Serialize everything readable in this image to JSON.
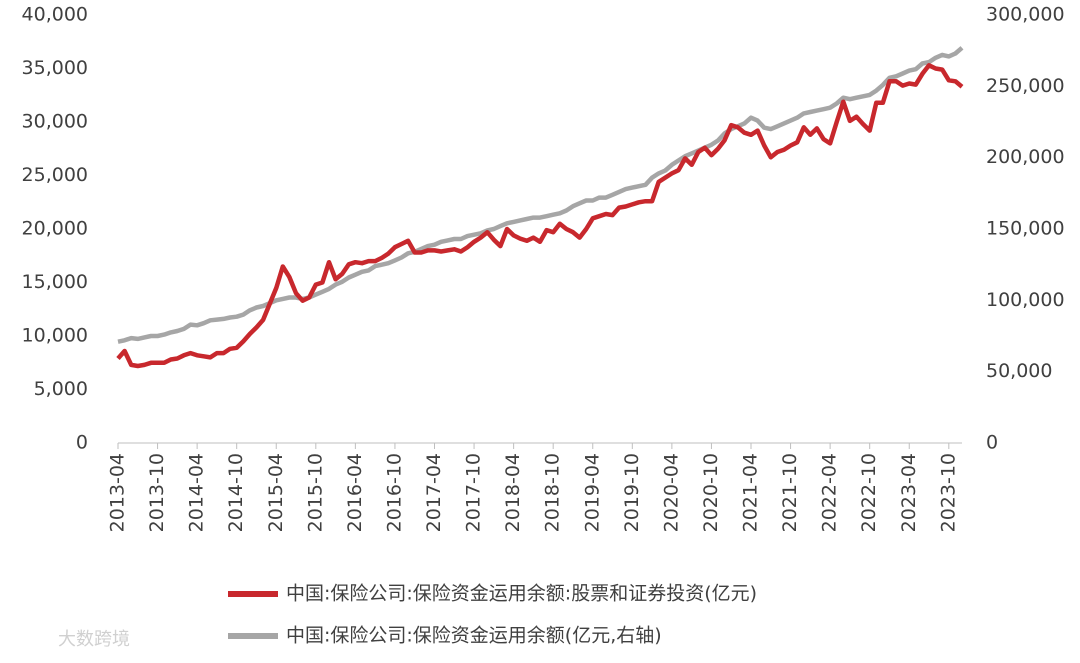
{
  "chart_data": {
    "type": "line",
    "categories": [
      "2013-04",
      null,
      null,
      null,
      null,
      null,
      "2013-10",
      null,
      null,
      null,
      null,
      null,
      "2014-04",
      null,
      null,
      null,
      null,
      null,
      "2014-10",
      null,
      null,
      null,
      null,
      null,
      "2015-04",
      null,
      null,
      null,
      null,
      null,
      "2015-10",
      null,
      null,
      null,
      null,
      null,
      "2016-04",
      null,
      null,
      null,
      null,
      null,
      "2016-10",
      null,
      null,
      null,
      null,
      null,
      "2017-04",
      null,
      null,
      null,
      null,
      null,
      "2017-10",
      null,
      null,
      null,
      null,
      null,
      "2018-04",
      null,
      null,
      null,
      null,
      null,
      "2018-10",
      null,
      null,
      null,
      null,
      null,
      "2019-04",
      null,
      null,
      null,
      null,
      null,
      "2019-10",
      null,
      null,
      null,
      null,
      null,
      "2020-04",
      null,
      null,
      null,
      null,
      null,
      "2020-10",
      null,
      null,
      null,
      null,
      null,
      "2021-04",
      null,
      null,
      null,
      null,
      null,
      "2021-10",
      null,
      null,
      null,
      null,
      null,
      "2022-04",
      null,
      null,
      null,
      null,
      null,
      "2022-10",
      null,
      null,
      null,
      null,
      null,
      "2023-04",
      null,
      null,
      null,
      null,
      null,
      "2023-10",
      null,
      null
    ],
    "series": [
      {
        "name": "中国:保险公司:保险资金运用余额:股票和证券投资(亿元)",
        "color": "#c8282d",
        "axis": "y",
        "values": [
          7900,
          8600,
          7300,
          7200,
          7300,
          7500,
          7500,
          7500,
          7800,
          7900,
          8200,
          8400,
          8200,
          8100,
          8000,
          8400,
          8400,
          8800,
          8900,
          9500,
          10200,
          10800,
          11500,
          13000,
          14500,
          16500,
          15500,
          14000,
          13300,
          13600,
          14800,
          15000,
          16900,
          15300,
          15800,
          16700,
          16900,
          16800,
          17000,
          17000,
          17300,
          17700,
          18300,
          18600,
          18900,
          17800,
          17800,
          18000,
          18000,
          17900,
          18000,
          18100,
          17900,
          18300,
          18800,
          19200,
          19700,
          19000,
          18400,
          20000,
          19400,
          19100,
          18900,
          19200,
          18800,
          19900,
          19700,
          20500,
          20000,
          19700,
          19200,
          20000,
          21000,
          21200,
          21400,
          21300,
          22000,
          22100,
          22300,
          22500,
          22600,
          22600,
          24400,
          24800,
          25200,
          25500,
          26600,
          26000,
          27200,
          27600,
          26900,
          27500,
          28300,
          29700,
          29500,
          29000,
          28800,
          29200,
          27800,
          26700,
          27200,
          27400,
          27800,
          28100,
          29500,
          28800,
          29400,
          28400,
          28000,
          30000,
          31900,
          30100,
          30500,
          29800,
          29200,
          31800,
          31800,
          33800,
          33800,
          33400,
          33600,
          33500,
          34500,
          35300,
          35000,
          34900,
          33900,
          33800,
          33300
        ]
      },
      {
        "name": "中国:保险公司:保险资金运用余额(亿元,右轴)",
        "color": "#a6a6a6",
        "axis": "y2",
        "values": [
          71000,
          72000,
          73500,
          73000,
          74000,
          75000,
          75000,
          76000,
          77500,
          78500,
          80000,
          83000,
          82500,
          84000,
          86000,
          86500,
          87000,
          88000,
          88500,
          90000,
          93000,
          95000,
          96000,
          98000,
          100000,
          101000,
          102000,
          102000,
          101000,
          102000,
          104000,
          106000,
          108000,
          111000,
          113000,
          116000,
          118000,
          120000,
          121000,
          124000,
          125000,
          126000,
          128000,
          130000,
          133000,
          134000,
          136000,
          138000,
          139000,
          141000,
          142000,
          143000,
          143000,
          145000,
          146000,
          147000,
          149000,
          150000,
          152000,
          154000,
          155000,
          156000,
          157000,
          158000,
          158000,
          159000,
          160000,
          161000,
          163000,
          166000,
          168000,
          170000,
          170000,
          172000,
          172000,
          174000,
          176000,
          178000,
          179000,
          180000,
          181000,
          186000,
          189000,
          191000,
          195000,
          198000,
          201000,
          203000,
          205000,
          207000,
          209000,
          212000,
          217000,
          220000,
          222000,
          224000,
          228000,
          226000,
          221000,
          220000,
          222000,
          224000,
          226000,
          228000,
          231000,
          232000,
          233000,
          234000,
          235000,
          238000,
          242000,
          241000,
          242000,
          243000,
          244000,
          247000,
          251000,
          256000,
          257000,
          259000,
          261000,
          262000,
          266000,
          267000,
          270000,
          272000,
          271000,
          273000,
          277000
        ]
      }
    ],
    "ylim": [
      0,
      40000
    ],
    "yticks": [
      0,
      {
        "value": 5000,
        "label": "5,000"
      },
      {
        "value": 10000,
        "label": "10,000"
      },
      {
        "value": 15000,
        "label": "15,000"
      },
      {
        "value": 20000,
        "label": "20,000"
      },
      {
        "value": 25000,
        "label": "25,000"
      },
      {
        "value": 30000,
        "label": "30,000"
      },
      {
        "value": 35000,
        "label": "35,000"
      },
      {
        "value": 40000,
        "label": "40,000"
      }
    ],
    "y2lim": [
      0,
      300000
    ],
    "y2ticks": [
      0,
      {
        "value": 50000,
        "label": "50,000"
      },
      {
        "value": 100000,
        "label": "100,000"
      },
      {
        "value": 150000,
        "label": "150,000"
      },
      {
        "value": 200000,
        "label": "200,000"
      },
      {
        "value": 250000,
        "label": "250,000"
      },
      {
        "value": 300000,
        "label": "300,000"
      }
    ],
    "grid": false,
    "legend": "bottom"
  },
  "watermark": "大数跨境"
}
